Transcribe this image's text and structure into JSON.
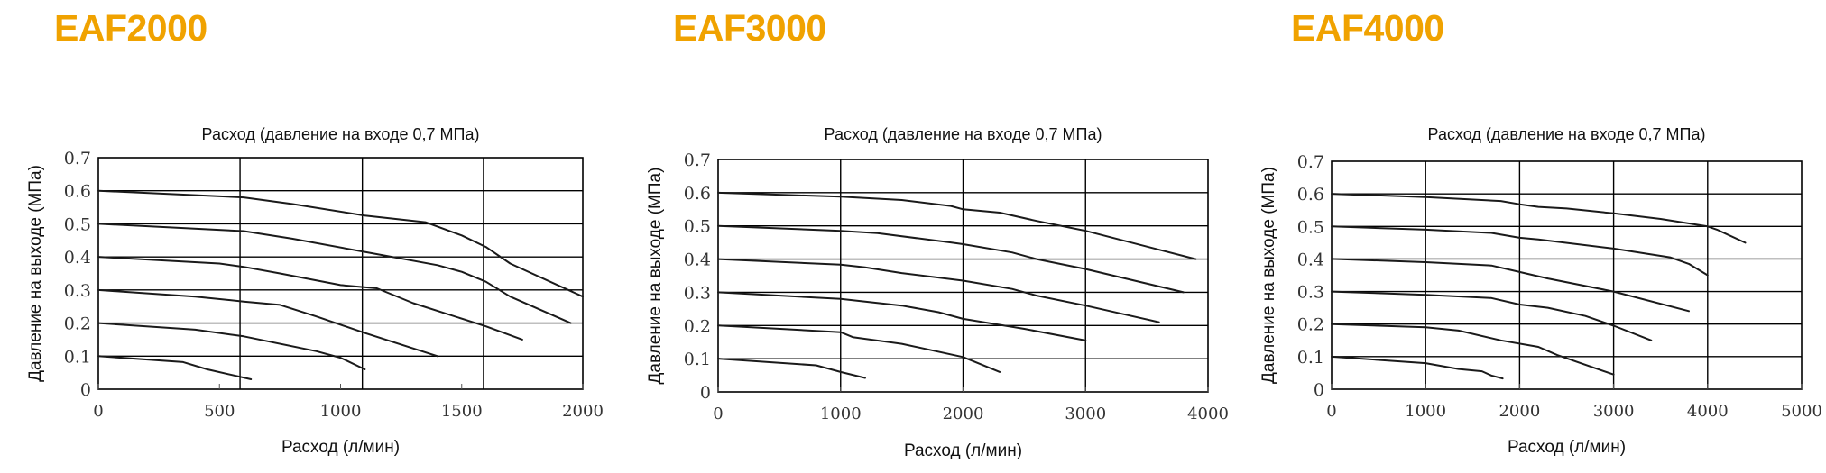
{
  "colors": {
    "title": "#F0A200",
    "line": "#1a1a1a",
    "grid": "#000000"
  },
  "chart_data": [
    {
      "type": "line",
      "model_title": "EAF2000",
      "title": "Расход (давление на входе 0,7 МПа)",
      "xlabel": "Расход (л/мин)",
      "ylabel": "Давление на выходе (МПа)",
      "xlim": [
        0,
        2000
      ],
      "ylim": [
        0,
        0.7
      ],
      "xticks": [
        "0",
        "500",
        "1000",
        "1500",
        "2000"
      ],
      "xtick_values": [
        0,
        500,
        1000,
        1500,
        2000
      ],
      "yticks": [
        "0",
        "0.1",
        "0.2",
        "0.3",
        "0.4",
        "0.5",
        "0.6",
        "0.7"
      ],
      "vertical_gridlines": [
        585,
        1090,
        1590
      ],
      "grid": true,
      "series": [
        {
          "x": [
            0,
            600,
            800,
            1100,
            1350,
            1500,
            1600,
            1700,
            2000
          ],
          "y": [
            0.6,
            0.58,
            0.56,
            0.525,
            0.505,
            0.465,
            0.43,
            0.38,
            0.28
          ]
        },
        {
          "x": [
            0,
            600,
            800,
            1100,
            1400,
            1500,
            1600,
            1700,
            1950
          ],
          "y": [
            0.5,
            0.478,
            0.455,
            0.415,
            0.375,
            0.355,
            0.325,
            0.28,
            0.2
          ]
        },
        {
          "x": [
            0,
            500,
            600,
            750,
            1000,
            1150,
            1300,
            1600,
            1750
          ],
          "y": [
            0.4,
            0.38,
            0.37,
            0.35,
            0.315,
            0.305,
            0.26,
            0.19,
            0.15
          ]
        },
        {
          "x": [
            0,
            400,
            600,
            750,
            900,
            1100,
            1400
          ],
          "y": [
            0.3,
            0.28,
            0.265,
            0.255,
            0.22,
            0.17,
            0.1
          ]
        },
        {
          "x": [
            0,
            400,
            600,
            700,
            900,
            1000,
            1100
          ],
          "y": [
            0.2,
            0.18,
            0.16,
            0.145,
            0.115,
            0.095,
            0.06
          ]
        },
        {
          "x": [
            0,
            350,
            450,
            630
          ],
          "y": [
            0.1,
            0.082,
            0.06,
            0.03
          ]
        }
      ]
    },
    {
      "type": "line",
      "model_title": "EAF3000",
      "title": "Расход (давление на входе 0,7 МПа)",
      "xlabel": "Расход (л/мин)",
      "ylabel": "Давление на выходе (МПа)",
      "xlim": [
        0,
        4000
      ],
      "ylim": [
        0,
        0.7
      ],
      "xticks": [
        "0",
        "1000",
        "2000",
        "3000",
        "4000"
      ],
      "xtick_values": [
        0,
        1000,
        2000,
        3000,
        4000
      ],
      "yticks": [
        "0",
        "0.1",
        "0.2",
        "0.3",
        "0.4",
        "0.5",
        "0.6",
        "0.7"
      ],
      "vertical_gridlines": [
        1000,
        2000,
        3000
      ],
      "grid": true,
      "series": [
        {
          "x": [
            0,
            1000,
            1500,
            1900,
            2000,
            2300,
            2600,
            3000,
            3900
          ],
          "y": [
            0.6,
            0.588,
            0.578,
            0.56,
            0.55,
            0.54,
            0.515,
            0.485,
            0.4
          ]
        },
        {
          "x": [
            0,
            1000,
            1300,
            1900,
            2000,
            2400,
            2600,
            3000,
            3800
          ],
          "y": [
            0.5,
            0.485,
            0.478,
            0.45,
            0.445,
            0.42,
            0.4,
            0.37,
            0.3
          ]
        },
        {
          "x": [
            0,
            1000,
            1200,
            1500,
            2000,
            2400,
            2600,
            3000,
            3600
          ],
          "y": [
            0.4,
            0.383,
            0.375,
            0.358,
            0.335,
            0.31,
            0.29,
            0.26,
            0.21
          ]
        },
        {
          "x": [
            0,
            1000,
            1500,
            1800,
            2000,
            2500,
            3000
          ],
          "y": [
            0.3,
            0.28,
            0.26,
            0.24,
            0.22,
            0.19,
            0.155
          ]
        },
        {
          "x": [
            0,
            1000,
            1100,
            1500,
            2000,
            2300
          ],
          "y": [
            0.2,
            0.18,
            0.165,
            0.145,
            0.105,
            0.06
          ]
        },
        {
          "x": [
            0,
            800,
            1000,
            1200
          ],
          "y": [
            0.1,
            0.08,
            0.06,
            0.042
          ]
        }
      ]
    },
    {
      "type": "line",
      "model_title": "EAF4000",
      "title": "Расход (давление на входе 0,7 МПа)",
      "xlabel": "Расход (л/мин)",
      "ylabel": "Давление на выходе (МПа)",
      "xlim": [
        0,
        5000
      ],
      "ylim": [
        0,
        0.7
      ],
      "xticks": [
        "0",
        "1000",
        "2000",
        "3000",
        "4000",
        "5000"
      ],
      "xtick_values": [
        0,
        1000,
        2000,
        3000,
        4000,
        5000
      ],
      "yticks": [
        "0",
        "0.1",
        "0.2",
        "0.3",
        "0.4",
        "0.5",
        "0.6",
        "0.7"
      ],
      "vertical_gridlines": [
        1000,
        2000,
        3000,
        4000
      ],
      "grid": true,
      "series": [
        {
          "x": [
            0,
            1000,
            1800,
            2000,
            2200,
            2500,
            3000,
            3500,
            4000,
            4100,
            4400
          ],
          "y": [
            0.6,
            0.59,
            0.578,
            0.568,
            0.56,
            0.555,
            0.54,
            0.523,
            0.5,
            0.49,
            0.45
          ]
        },
        {
          "x": [
            0,
            1000,
            1700,
            2000,
            2200,
            3000,
            3600,
            3800,
            4000
          ],
          "y": [
            0.5,
            0.49,
            0.48,
            0.465,
            0.46,
            0.432,
            0.405,
            0.385,
            0.35
          ]
        },
        {
          "x": [
            0,
            1000,
            1700,
            2000,
            2300,
            3000,
            3800
          ],
          "y": [
            0.4,
            0.39,
            0.38,
            0.36,
            0.34,
            0.3,
            0.24
          ]
        },
        {
          "x": [
            0,
            1000,
            1700,
            2000,
            2300,
            2700,
            3000,
            3400
          ],
          "y": [
            0.3,
            0.29,
            0.28,
            0.26,
            0.25,
            0.225,
            0.195,
            0.15
          ]
        },
        {
          "x": [
            0,
            1000,
            1350,
            1800,
            2200,
            2400,
            3000
          ],
          "y": [
            0.2,
            0.19,
            0.18,
            0.15,
            0.13,
            0.105,
            0.045
          ]
        },
        {
          "x": [
            0,
            1000,
            1350,
            1600,
            1700,
            1820
          ],
          "y": [
            0.1,
            0.08,
            0.062,
            0.055,
            0.042,
            0.033
          ]
        }
      ]
    }
  ]
}
